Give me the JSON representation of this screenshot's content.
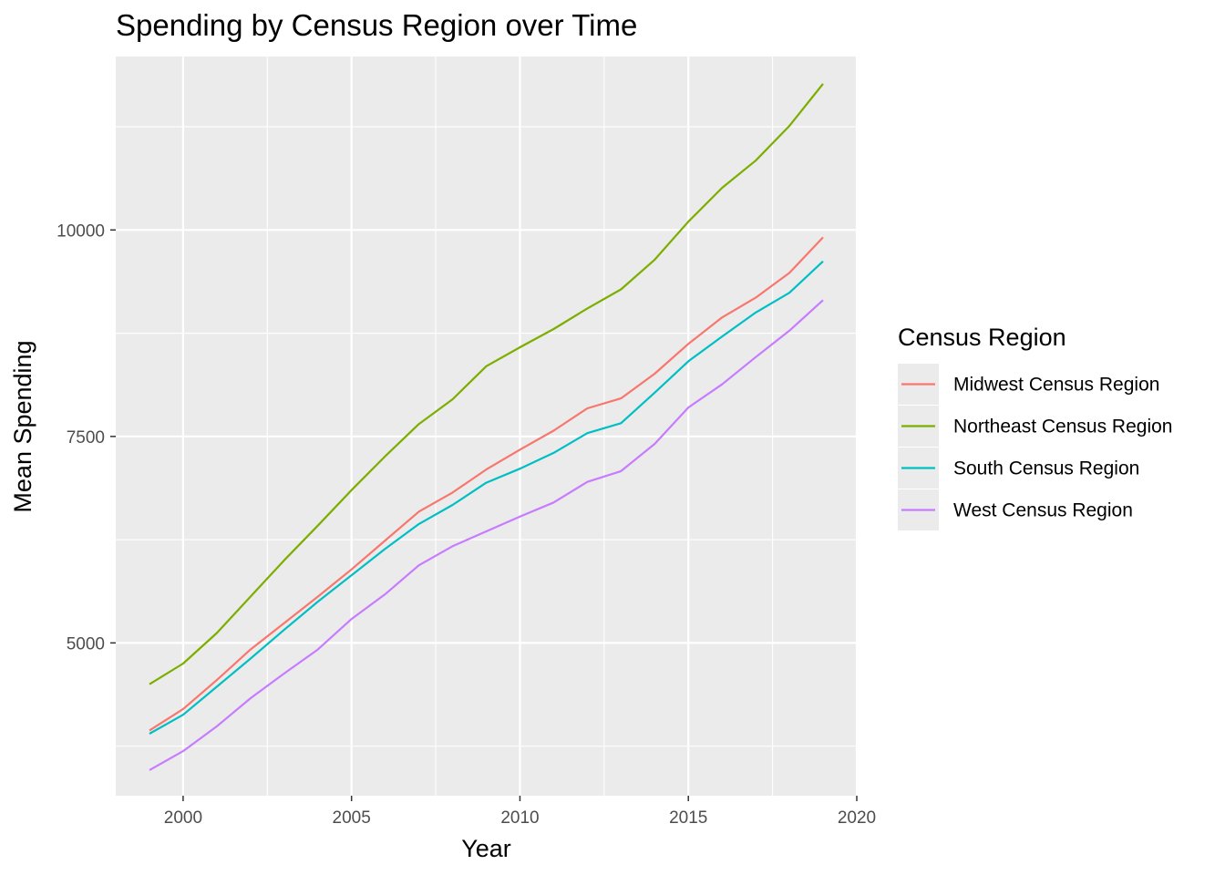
{
  "chart_data": {
    "type": "line",
    "title": "Spending by Census Region over Time",
    "xlabel": "Year",
    "ylabel": "Mean Spending",
    "x": [
      1999,
      2000,
      2001,
      2002,
      2003,
      2004,
      2005,
      2006,
      2007,
      2008,
      2009,
      2010,
      2011,
      2012,
      2013,
      2014,
      2015,
      2016,
      2017,
      2018,
      2019
    ],
    "xlim": [
      1998,
      2020
    ],
    "ylim": [
      3150,
      12100
    ],
    "x_ticks": [
      2000,
      2005,
      2010,
      2015,
      2020
    ],
    "x_tick_labels": [
      "2000",
      "2005",
      "2010",
      "2015",
      "2020"
    ],
    "y_ticks": [
      5000,
      7500,
      10000
    ],
    "y_tick_labels": [
      "5000",
      "7500",
      "10000"
    ],
    "grid": true,
    "panel_background": "#ebebeb",
    "grid_color": "#ffffff",
    "legend": {
      "title": "Census Region",
      "position": "right"
    },
    "series": [
      {
        "name": "Midwest Census Region",
        "color": "#f8766d",
        "values": [
          3940,
          4200,
          4550,
          4920,
          5240,
          5560,
          5890,
          6240,
          6590,
          6820,
          7100,
          7340,
          7570,
          7840,
          7960,
          8260,
          8620,
          8940,
          9180,
          9480,
          9910
        ]
      },
      {
        "name": "Northeast Census Region",
        "color": "#7cae00",
        "values": [
          4500,
          4750,
          5120,
          5560,
          6000,
          6420,
          6850,
          7260,
          7650,
          7950,
          8350,
          8580,
          8800,
          9050,
          9280,
          9640,
          10100,
          10510,
          10840,
          11260,
          11770
        ]
      },
      {
        "name": "South Census Region",
        "color": "#00bfc4",
        "values": [
          3900,
          4130,
          4470,
          4810,
          5160,
          5500,
          5820,
          6140,
          6440,
          6670,
          6940,
          7110,
          7300,
          7540,
          7660,
          8030,
          8410,
          8710,
          9000,
          9240,
          9620
        ]
      },
      {
        "name": "West Census Region",
        "color": "#c77cff",
        "values": [
          3460,
          3690,
          3990,
          4330,
          4630,
          4920,
          5290,
          5590,
          5940,
          6170,
          6350,
          6530,
          6700,
          6950,
          7080,
          7410,
          7850,
          8130,
          8460,
          8780,
          9150
        ]
      }
    ]
  }
}
